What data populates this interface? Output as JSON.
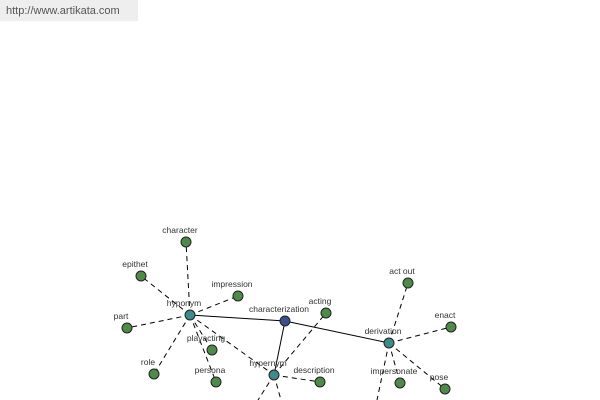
{
  "header": {
    "url": "http://www.artikata.com"
  },
  "nodes": [
    {
      "label": "characterization"
    },
    {
      "label": "hyponym"
    },
    {
      "label": "hypernym"
    },
    {
      "label": "derivation"
    },
    {
      "label": "character"
    },
    {
      "label": "epithet"
    },
    {
      "label": "impression"
    },
    {
      "label": "part"
    },
    {
      "label": "role"
    },
    {
      "label": "playacting"
    },
    {
      "label": "persona"
    },
    {
      "label": "acting"
    },
    {
      "label": "description"
    },
    {
      "label": "act out"
    },
    {
      "label": "enact"
    },
    {
      "label": "impersonate"
    },
    {
      "label": "pose"
    }
  ]
}
